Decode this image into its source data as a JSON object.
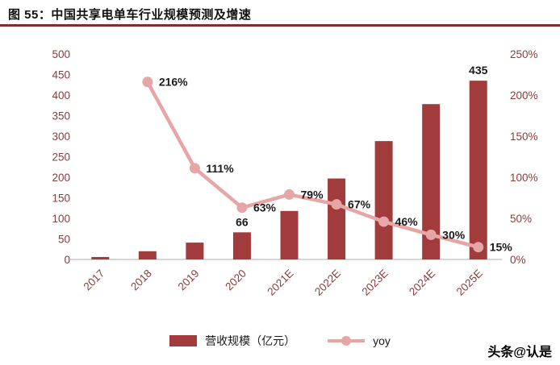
{
  "page": {
    "title": "图 55：中国共享电单车行业规模预测及增速",
    "watermark": "头条@认是"
  },
  "colors": {
    "bar": "#A23C3C",
    "line": "#E7A6A6",
    "rule": "#7E2F2F",
    "axis_text": "#8A3B3B"
  },
  "chart_data": {
    "type": "bar",
    "subtype": "bar+line combo, dual axis",
    "title": "中国共享电单车行业规模预测及增速",
    "categories": [
      "2017",
      "2018",
      "2019",
      "2020",
      "2021E",
      "2022E",
      "2023E",
      "2024E",
      "2025E"
    ],
    "series": [
      {
        "name": "营收规模（亿元）",
        "type": "bar",
        "axis": "left",
        "color": "#A23C3C",
        "values": [
          6,
          20,
          41,
          66,
          118,
          197,
          288,
          378,
          435
        ],
        "labels": {
          "3": "66",
          "8": "435"
        }
      },
      {
        "name": "yoy",
        "type": "line",
        "axis": "right",
        "color": "#E7A6A6",
        "x_start_index": 1,
        "values": [
          216,
          111,
          63,
          79,
          67,
          46,
          30,
          15
        ],
        "labels": [
          "216%",
          "111%",
          "63%",
          "79%",
          "67%",
          "46%",
          "30%",
          "15%"
        ]
      }
    ],
    "left_axis": {
      "min": 0,
      "max": 500,
      "step": 50,
      "ticks": [
        "0",
        "50",
        "100",
        "150",
        "200",
        "250",
        "300",
        "350",
        "400",
        "450",
        "500"
      ]
    },
    "right_axis": {
      "min": 0,
      "max": 250,
      "step": 50,
      "ticks": [
        "0%",
        "50%",
        "100%",
        "150%",
        "200%",
        "250%"
      ]
    },
    "grid": false,
    "legend_position": "bottom",
    "legend": [
      {
        "label": "营收规模（亿元）",
        "swatch": "bar"
      },
      {
        "label": "yoy",
        "swatch": "line"
      }
    ]
  }
}
